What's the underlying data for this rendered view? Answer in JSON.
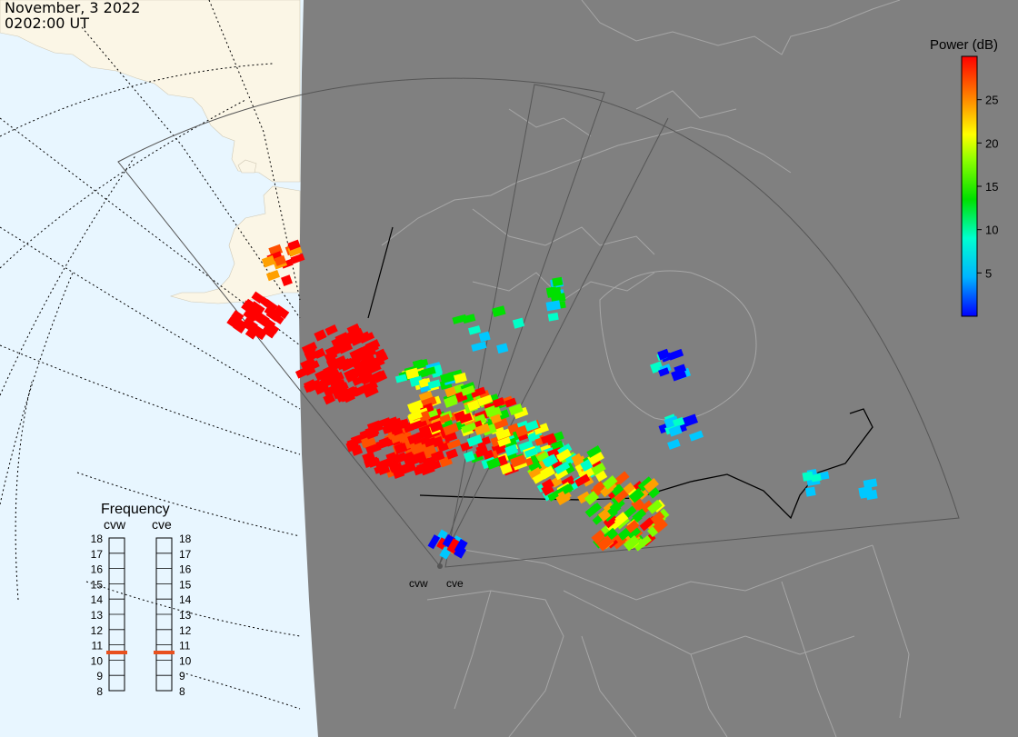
{
  "header": {
    "date": "November, 3 2022",
    "time": "0202:00 UT"
  },
  "colorbar": {
    "title": "Power (dB)",
    "ticks": [
      5,
      10,
      15,
      20,
      25
    ],
    "min": 0,
    "max": 30,
    "colormap": [
      "#0000ff",
      "#00c8ff",
      "#00ffc8",
      "#00e000",
      "#80ff00",
      "#ffff00",
      "#ffa000",
      "#ff5000",
      "#ff0000"
    ]
  },
  "frequency_panel": {
    "title": "Frequency",
    "columns": [
      {
        "name": "cvw",
        "value": 11
      },
      {
        "name": "cve",
        "value": 11
      }
    ],
    "scale": [
      18,
      17,
      16,
      15,
      14,
      13,
      12,
      11,
      10,
      9,
      8
    ],
    "marker_color": "#e8501e"
  },
  "radars": [
    {
      "name": "cvw"
    },
    {
      "name": "cve"
    }
  ],
  "colors": {
    "space": "#e8f6ff",
    "land_day": "#fbf6e6",
    "night": "#808080",
    "boundary": "#a6a6a6",
    "fov": "#555555"
  }
}
